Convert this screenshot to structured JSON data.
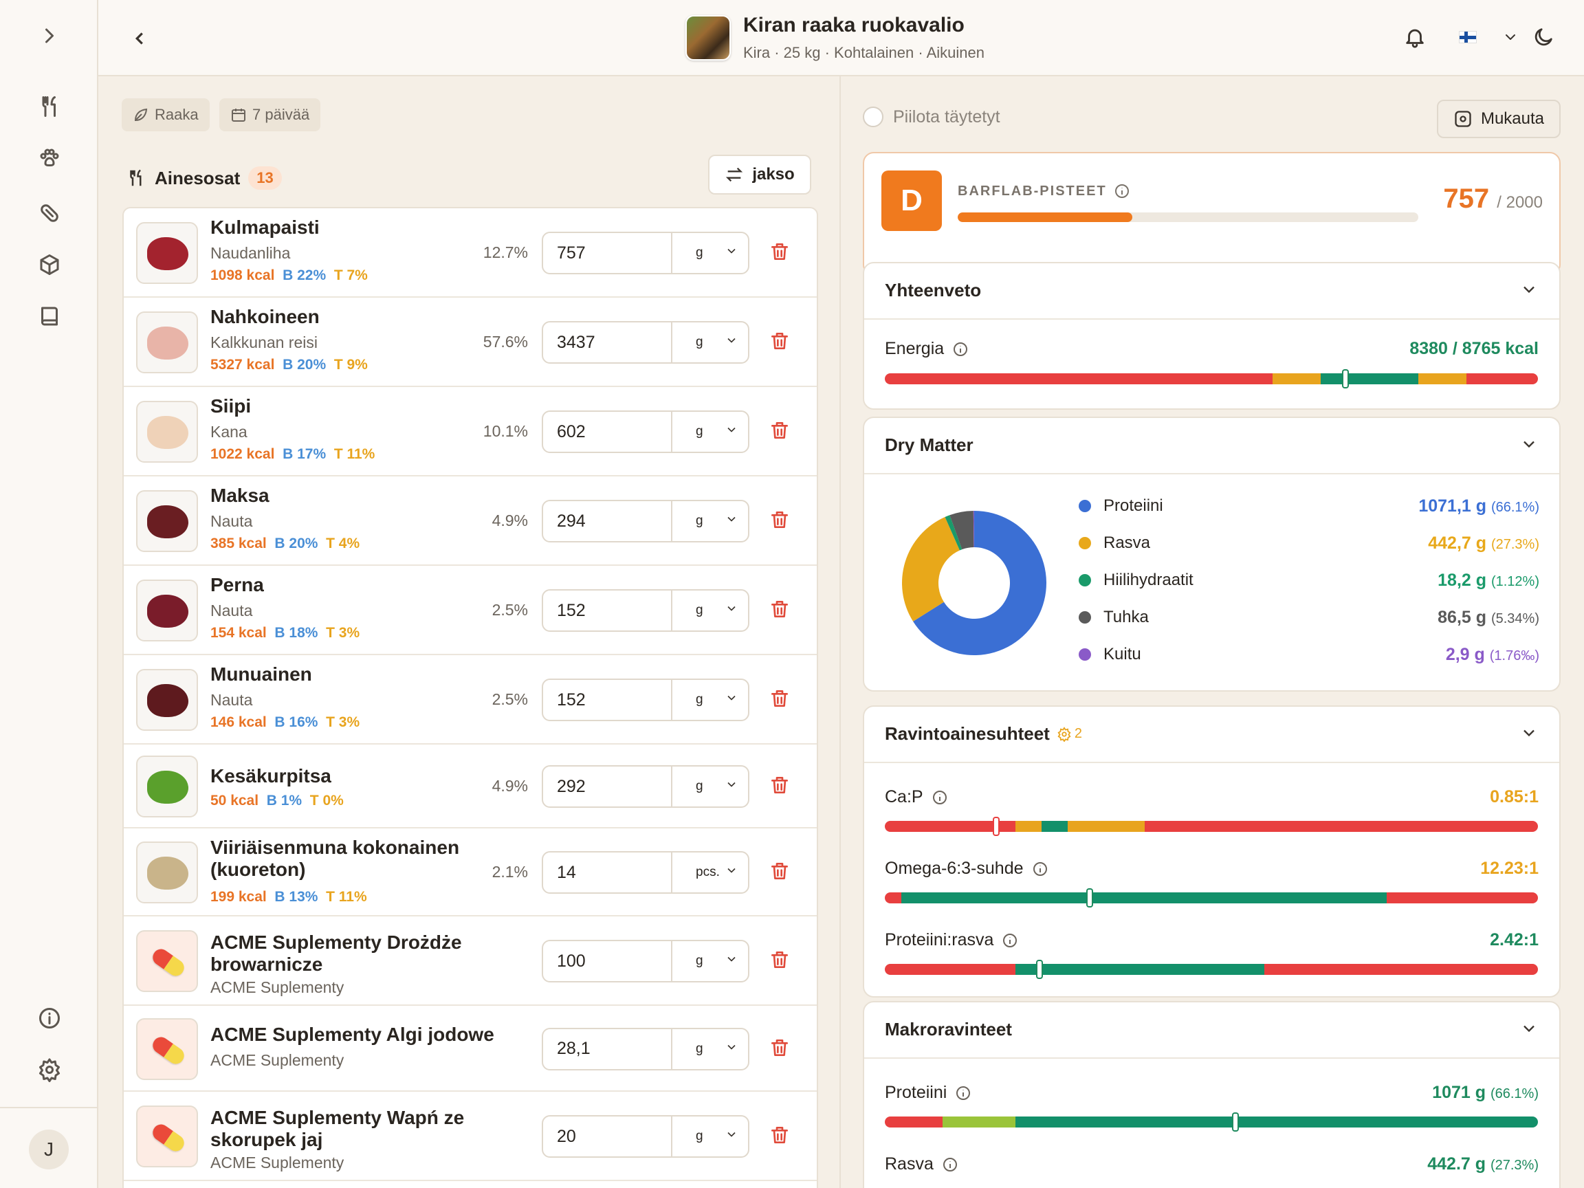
{
  "header": {
    "title": "Kiran raaka ruokavalio",
    "subtitle": "Kira · 25 kg · Kohtalainen · Aikuinen"
  },
  "sidebar": {
    "avatar_initial": "J"
  },
  "filters": {
    "diet_type": "Raaka",
    "duration": "7 päivää"
  },
  "ingredients": {
    "title": "Ainesosat",
    "count": "13",
    "period_button": "jakso",
    "items": [
      {
        "name": "Kulmapaisti",
        "sub": "Naudanliha",
        "kcal": "1098 kcal",
        "protein": "B 22%",
        "fat": "T 7%",
        "pct": "12.7%",
        "qty": "757",
        "unit": "g",
        "thumb": "meat",
        "color": "#a3232e"
      },
      {
        "name": "Nahkoineen",
        "sub": "Kalkkunan reisi",
        "kcal": "5327 kcal",
        "protein": "B 20%",
        "fat": "T 9%",
        "pct": "57.6%",
        "qty": "3437",
        "unit": "g",
        "thumb": "meat",
        "color": "#e8b4a8"
      },
      {
        "name": "Siipi",
        "sub": "Kana",
        "kcal": "1022 kcal",
        "protein": "B 17%",
        "fat": "T 11%",
        "pct": "10.1%",
        "qty": "602",
        "unit": "g",
        "thumb": "meat",
        "color": "#efd2b8"
      },
      {
        "name": "Maksa",
        "sub": "Nauta",
        "kcal": "385 kcal",
        "protein": "B 20%",
        "fat": "T 4%",
        "pct": "4.9%",
        "qty": "294",
        "unit": "g",
        "thumb": "meat",
        "color": "#6a1e22"
      },
      {
        "name": "Perna",
        "sub": "Nauta",
        "kcal": "154 kcal",
        "protein": "B 18%",
        "fat": "T 3%",
        "pct": "2.5%",
        "qty": "152",
        "unit": "g",
        "thumb": "meat",
        "color": "#7a1c2a"
      },
      {
        "name": "Munuainen",
        "sub": "Nauta",
        "kcal": "146 kcal",
        "protein": "B 16%",
        "fat": "T 3%",
        "pct": "2.5%",
        "qty": "152",
        "unit": "g",
        "thumb": "meat",
        "color": "#5e1a1e"
      },
      {
        "name": "Kesäkurpitsa",
        "sub": "",
        "kcal": "50 kcal",
        "protein": "B 1%",
        "fat": "T 0%",
        "pct": "4.9%",
        "qty": "292",
        "unit": "g",
        "thumb": "meat",
        "color": "#5aa02c"
      },
      {
        "name": "Viiriäisenmuna kokonainen (kuoreton)",
        "sub": "",
        "kcal": "199 kcal",
        "protein": "B 13%",
        "fat": "T 11%",
        "pct": "2.1%",
        "qty": "14",
        "unit": "pcs.",
        "thumb": "meat",
        "color": "#c9b48a"
      },
      {
        "name": "ACME Suplementy Drożdże browarnicze",
        "sub": "ACME Suplementy",
        "kcal": "",
        "protein": "",
        "fat": "",
        "pct": "",
        "qty": "100",
        "unit": "g",
        "thumb": "pill",
        "color": "#ea4a3a"
      },
      {
        "name": "ACME Suplementy Algi jodowe",
        "sub": "ACME Suplementy",
        "kcal": "",
        "protein": "",
        "fat": "",
        "pct": "",
        "qty": "28,1",
        "unit": "g",
        "thumb": "pill",
        "color": "#ea4a3a"
      },
      {
        "name": "ACME Suplementy Wapń ze skorupek jaj",
        "sub": "ACME Suplementy",
        "kcal": "",
        "protein": "",
        "fat": "",
        "pct": "",
        "qty": "20",
        "unit": "g",
        "thumb": "pill",
        "color": "#ea4a3a"
      }
    ]
  },
  "right": {
    "hide_filled": "Piilota täytetyt",
    "customize": "Mukauta"
  },
  "score": {
    "grade": "D",
    "label": "BARFLAB-PISTEET",
    "value": "757",
    "max": "/ 2000",
    "progress_fraction": 0.3785,
    "color": "#f07a1e"
  },
  "summary": {
    "title": "Yhteenveto",
    "energy_label": "Energia",
    "energy_value": "8380 / 8765 kcal"
  },
  "dry_matter": {
    "title": "Dry Matter",
    "items": [
      {
        "name": "Proteiini",
        "value": "1071,1 g",
        "pct": "(66.1%)",
        "color": "#3b6fd4"
      },
      {
        "name": "Rasva",
        "value": "442,7 g",
        "pct": "(27.3%)",
        "color": "#e8a81a"
      },
      {
        "name": "Hiilihydraatit",
        "value": "18,2 g",
        "pct": "(1.12%)",
        "color": "#1a9a6a"
      },
      {
        "name": "Tuhka",
        "value": "86,5 g",
        "pct": "(5.34%)",
        "color": "#5a5a5a"
      },
      {
        "name": "Kuitu",
        "value": "2,9 g",
        "pct": "(1.76‰)",
        "color": "#8a5ac8"
      }
    ],
    "chart_data": {
      "type": "pie",
      "categories": [
        "Proteiini",
        "Rasva",
        "Hiilihydraatit",
        "Tuhka",
        "Kuitu"
      ],
      "values": [
        66.1,
        27.3,
        1.12,
        5.34,
        0.176
      ]
    }
  },
  "ratios": {
    "title": "Ravintoainesuhteet",
    "badge": "2",
    "items": [
      {
        "label": "Ca:P",
        "value": "0.85:1",
        "color": "#e8a41e"
      },
      {
        "label": "Omega-6:3-suhde",
        "value": "12.23:1",
        "color": "#e8a41e"
      },
      {
        "label": "Proteiini:rasva",
        "value": "2.42:1",
        "color": "#1e8a5e"
      }
    ]
  },
  "macros": {
    "title": "Makroravinteet",
    "items": [
      {
        "label": "Proteiini",
        "value": "1071 g",
        "pct": "(66.1%)",
        "color": "#1e8a5e"
      },
      {
        "label": "Rasva",
        "value": "442.7 g",
        "pct": "(27.3%)",
        "color": "#1e8a5e"
      }
    ]
  }
}
